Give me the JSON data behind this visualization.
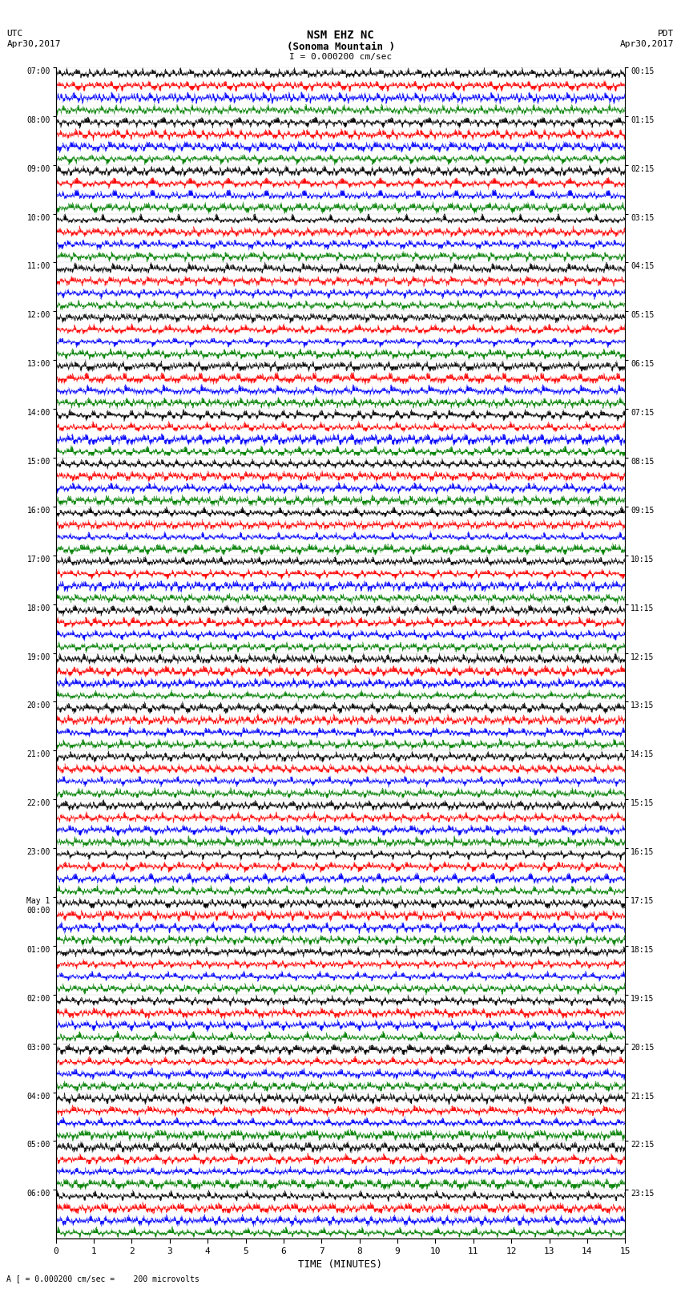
{
  "title_line1": "NSM EHZ NC",
  "title_line2": "(Sonoma Mountain )",
  "scale_label": "I = 0.000200 cm/sec",
  "bottom_label": "A [ = 0.000200 cm/sec =    200 microvolts",
  "xlabel": "TIME (MINUTES)",
  "left_header_line1": "UTC",
  "left_header_line2": "Apr30,2017",
  "right_header_line1": "PDT",
  "right_header_line2": "Apr30,2017",
  "left_times": [
    "07:00",
    "08:00",
    "09:00",
    "10:00",
    "11:00",
    "12:00",
    "13:00",
    "14:00",
    "15:00",
    "16:00",
    "17:00",
    "18:00",
    "19:00",
    "20:00",
    "21:00",
    "22:00",
    "23:00",
    "May 1\n00:00",
    "01:00",
    "02:00",
    "03:00",
    "04:00",
    "05:00",
    "06:00"
  ],
  "right_times": [
    "00:15",
    "01:15",
    "02:15",
    "03:15",
    "04:15",
    "05:15",
    "06:15",
    "07:15",
    "08:15",
    "09:15",
    "10:15",
    "11:15",
    "12:15",
    "13:15",
    "14:15",
    "15:15",
    "16:15",
    "17:15",
    "18:15",
    "19:15",
    "20:15",
    "21:15",
    "22:15",
    "23:15"
  ],
  "n_rows": 24,
  "n_traces_per_row": 4,
  "trace_colors": [
    "black",
    "red",
    "blue",
    "green"
  ],
  "x_ticks": [
    0,
    1,
    2,
    3,
    4,
    5,
    6,
    7,
    8,
    9,
    10,
    11,
    12,
    13,
    14,
    15
  ],
  "bg_color": "white",
  "plot_bg": "white",
  "figsize": [
    8.5,
    16.13
  ],
  "dpi": 100
}
